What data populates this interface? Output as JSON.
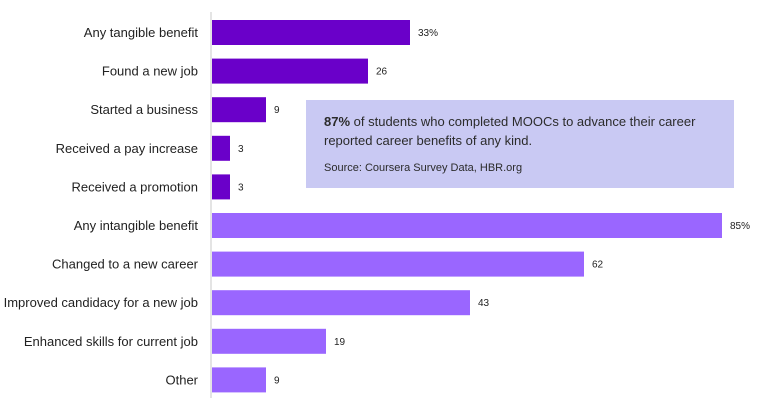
{
  "chart_data": {
    "type": "bar",
    "orientation": "horizontal",
    "categories": [
      "Any tangible benefit",
      "Found a new job",
      "Started a business",
      "Received a pay increase",
      "Received a promotion",
      "Any intangible benefit",
      "Changed to a new career",
      "Improved candidacy for a new job",
      "Enhanced skills for current job",
      "Other"
    ],
    "values": [
      33,
      26,
      9,
      3,
      3,
      85,
      62,
      43,
      19,
      9
    ],
    "value_labels": [
      "33%",
      "26",
      "9",
      "3",
      "3",
      "85%",
      "62",
      "43",
      "19",
      "9"
    ],
    "groups": [
      "tangible",
      "tangible",
      "tangible",
      "tangible",
      "tangible",
      "intangible",
      "intangible",
      "intangible",
      "intangible",
      "intangible"
    ],
    "group_colors": {
      "tangible": "#6a00c9",
      "intangible": "#9a66ff"
    },
    "xlim": [
      0,
      85
    ],
    "grid": false
  },
  "annotation": {
    "highlight": "87%",
    "text": " of students who completed  MOOCs to advance  their career  reported career  benefits of any kind.",
    "source": "Source: Coursera Survey Data, HBR.org",
    "background": "#c9c9f3"
  }
}
